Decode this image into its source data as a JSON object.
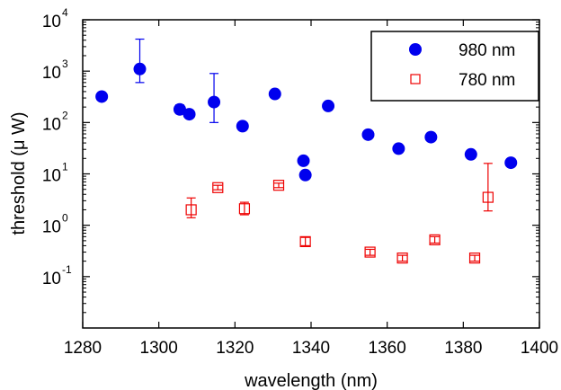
{
  "chart_data": {
    "type": "scatter",
    "title": "",
    "xlabel": "wavelength (nm)",
    "ylabel": "threshold (μ W)",
    "xlim": [
      1280,
      1400
    ],
    "ylim": [
      0.01,
      10000
    ],
    "yscale": "log",
    "x_ticks": [
      1280,
      1300,
      1320,
      1340,
      1360,
      1380,
      1400
    ],
    "y_ticks": [
      {
        "value": 0.1,
        "base": "10",
        "exp": "-1"
      },
      {
        "value": 1,
        "base": "10",
        "exp": "0"
      },
      {
        "value": 10,
        "base": "10",
        "exp": "1"
      },
      {
        "value": 100,
        "base": "10",
        "exp": "2"
      },
      {
        "value": 1000,
        "base": "10",
        "exp": "3"
      },
      {
        "value": 10000,
        "base": "10",
        "exp": "4"
      }
    ],
    "grid": false,
    "legend_position": "top-right",
    "series": [
      {
        "name": "980 nm",
        "marker": "filled-circle",
        "color": "#0000ee",
        "points": [
          {
            "x": 1285,
            "y": 320
          },
          {
            "x": 1295,
            "y": 1100,
            "yerr": [
              600,
              4200
            ]
          },
          {
            "x": 1305.5,
            "y": 180,
            "yerr": [
              160,
              220
            ]
          },
          {
            "x": 1308,
            "y": 145
          },
          {
            "x": 1314.5,
            "y": 250,
            "yerr": [
              100,
              900
            ]
          },
          {
            "x": 1322,
            "y": 85
          },
          {
            "x": 1330.5,
            "y": 360
          },
          {
            "x": 1338,
            "y": 18
          },
          {
            "x": 1338.5,
            "y": 9.5
          },
          {
            "x": 1344.5,
            "y": 210
          },
          {
            "x": 1355,
            "y": 58
          },
          {
            "x": 1363,
            "y": 31
          },
          {
            "x": 1371.5,
            "y": 52
          },
          {
            "x": 1382,
            "y": 24
          },
          {
            "x": 1392.5,
            "y": 16.5
          }
        ]
      },
      {
        "name": "780 nm",
        "marker": "open-square",
        "color": "#ee0000",
        "points": [
          {
            "x": 1308.5,
            "y": 2.0,
            "yerr": [
              1.4,
              3.4
            ]
          },
          {
            "x": 1315.5,
            "y": 5.4,
            "yerr": [
              4.9,
              6.0
            ]
          },
          {
            "x": 1322.5,
            "y": 2.1,
            "yerr": [
              1.6,
              2.8
            ]
          },
          {
            "x": 1331.5,
            "y": 6.0,
            "yerr": [
              5.4,
              6.6
            ]
          },
          {
            "x": 1338.5,
            "y": 0.48,
            "yerr": [
              0.4,
              0.58
            ]
          },
          {
            "x": 1355.5,
            "y": 0.3,
            "yerr": [
              0.26,
              0.34
            ]
          },
          {
            "x": 1364,
            "y": 0.23,
            "yerr": [
              0.2,
              0.26
            ]
          },
          {
            "x": 1372.5,
            "y": 0.52,
            "yerr": [
              0.45,
              0.6
            ]
          },
          {
            "x": 1383,
            "y": 0.23,
            "yerr": [
              0.2,
              0.26
            ]
          },
          {
            "x": 1386.5,
            "y": 3.5,
            "yerr": [
              1.9,
              16
            ]
          }
        ]
      }
    ]
  }
}
